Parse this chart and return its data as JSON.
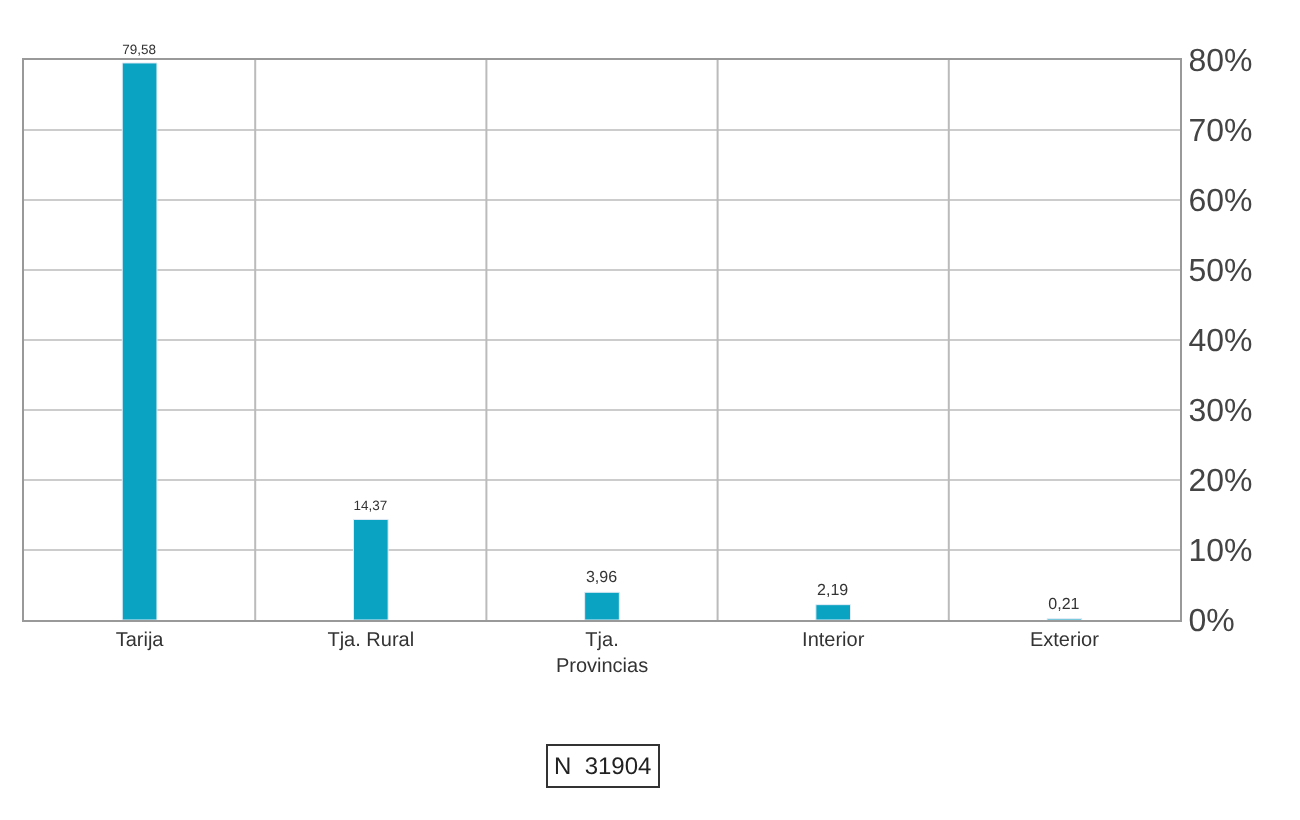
{
  "chart_data": {
    "type": "bar",
    "categories": [
      "Tarija",
      "Tja. Rural",
      "Tja.\nProvincias",
      "Interior",
      "Exterior"
    ],
    "values": [
      79.58,
      14.37,
      3.96,
      2.19,
      0.21
    ],
    "value_labels": [
      "79,58",
      "14,37",
      "3,96",
      "2,19",
      "0,21"
    ],
    "color": "#0aa3c2",
    "ylim": [
      0,
      80
    ],
    "yticks": [
      {
        "value": 0,
        "label": "0%"
      },
      {
        "value": 10,
        "label": "10%"
      },
      {
        "value": 20,
        "label": "20%"
      },
      {
        "value": 30,
        "label": "30%"
      },
      {
        "value": 40,
        "label": "40%"
      },
      {
        "value": 50,
        "label": "50%"
      },
      {
        "value": 60,
        "label": "60%"
      },
      {
        "value": 70,
        "label": "70%"
      },
      {
        "value": 80,
        "label": "80%"
      }
    ],
    "grid": true,
    "legend": false,
    "annotations": [
      "N  31904"
    ]
  }
}
